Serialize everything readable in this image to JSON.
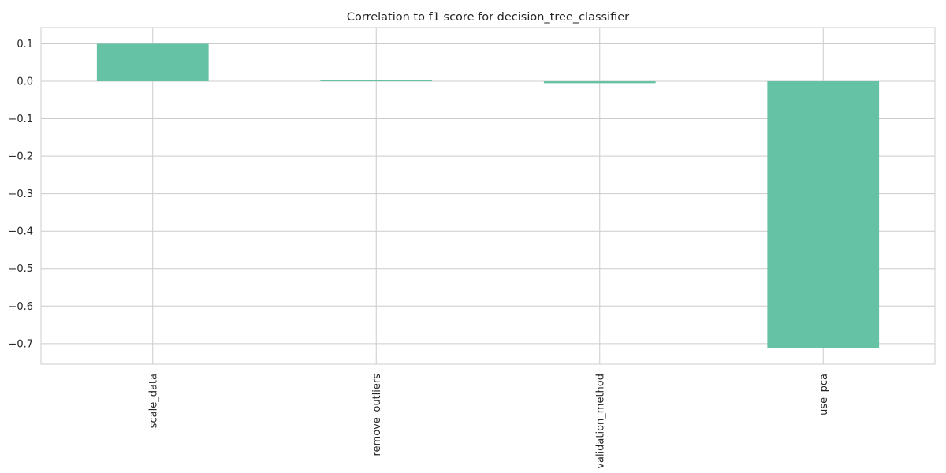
{
  "chart_data": {
    "type": "bar",
    "title": "Correlation to f1 score for decision_tree_classifier",
    "xlabel": "",
    "ylabel": "",
    "categories": [
      "scale_data",
      "remove_outliers",
      "validation_method",
      "use_pca"
    ],
    "values": [
      0.1,
      0.003,
      -0.005,
      -0.713
    ],
    "ylim": [
      -0.755,
      0.143
    ],
    "yticks": [
      0.1,
      0.0,
      -0.1,
      -0.2,
      -0.3,
      -0.4,
      -0.5,
      -0.6,
      -0.7
    ],
    "ytick_labels": [
      "0.1",
      "0.0",
      "−0.1",
      "−0.2",
      "−0.3",
      "−0.4",
      "−0.5",
      "−0.6",
      "−0.7"
    ],
    "grid": true,
    "bar_color": "#66c2a5",
    "grid_color": "#cccccc",
    "axis_color": "#cccccc",
    "text_color": "#262626"
  }
}
